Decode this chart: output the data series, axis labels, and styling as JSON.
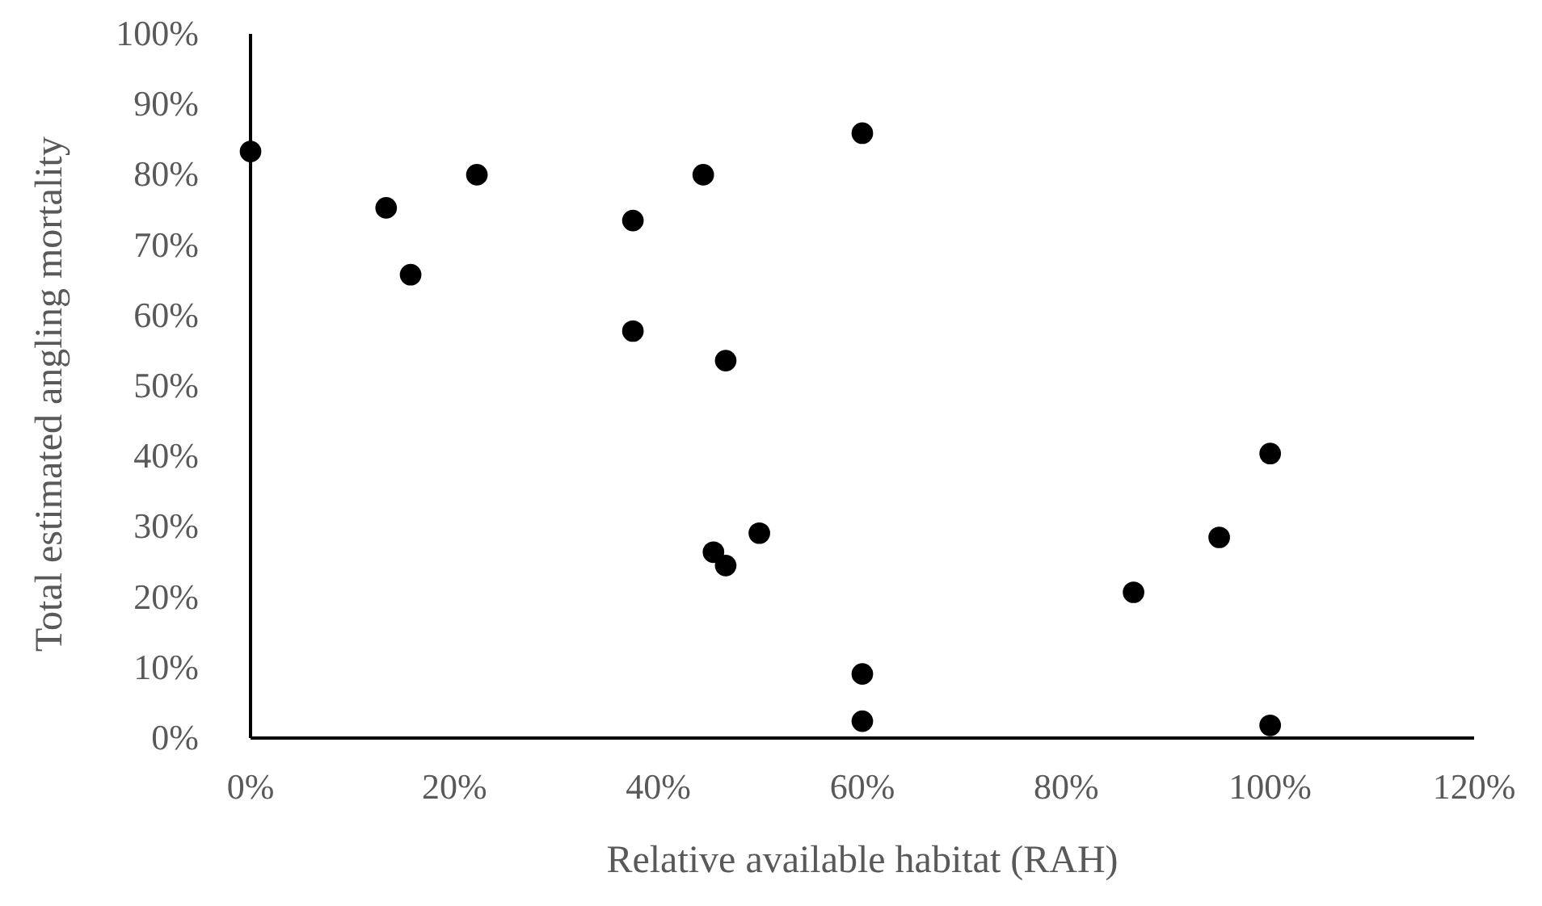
{
  "chart_data": {
    "type": "scatter",
    "xlabel": "Relative available habitat (RAH)",
    "ylabel": "Total estimated angling mortality",
    "x": [
      0,
      13.3,
      15.7,
      22.2,
      37.5,
      44.4,
      37.5,
      46.6,
      45.4,
      46.6,
      49.9,
      60,
      100,
      95,
      86.6,
      60,
      60,
      100
    ],
    "series": [
      {
        "color": "#000000",
        "values": [
          83.3,
          75.3,
          65.8,
          80,
          73.5,
          80,
          57.8,
          53.6,
          26.4,
          24.5,
          29.1,
          85.9,
          40.4,
          28.5,
          20.7,
          9.1,
          2.4,
          1.8
        ]
      }
    ],
    "xlim": [
      0,
      120
    ],
    "ylim": [
      0,
      100
    ],
    "xticks": [
      {
        "value": 0,
        "label": "0%"
      },
      {
        "value": 20,
        "label": "20%"
      },
      {
        "value": 40,
        "label": "40%"
      },
      {
        "value": 60,
        "label": "60%"
      },
      {
        "value": 80,
        "label": "80%"
      },
      {
        "value": 100,
        "label": "100%"
      },
      {
        "value": 120,
        "label": "120%"
      }
    ],
    "yticks": [
      {
        "value": 0,
        "label": "0%"
      },
      {
        "value": 10,
        "label": "10%"
      },
      {
        "value": 20,
        "label": "20%"
      },
      {
        "value": 30,
        "label": "30%"
      },
      {
        "value": 40,
        "label": "40%"
      },
      {
        "value": 50,
        "label": "50%"
      },
      {
        "value": 60,
        "label": "60%"
      },
      {
        "value": 70,
        "label": "70%"
      },
      {
        "value": 80,
        "label": "80%"
      },
      {
        "value": 90,
        "label": "90%"
      },
      {
        "value": 100,
        "label": "100%"
      }
    ],
    "grid": false,
    "marker": "circle"
  }
}
